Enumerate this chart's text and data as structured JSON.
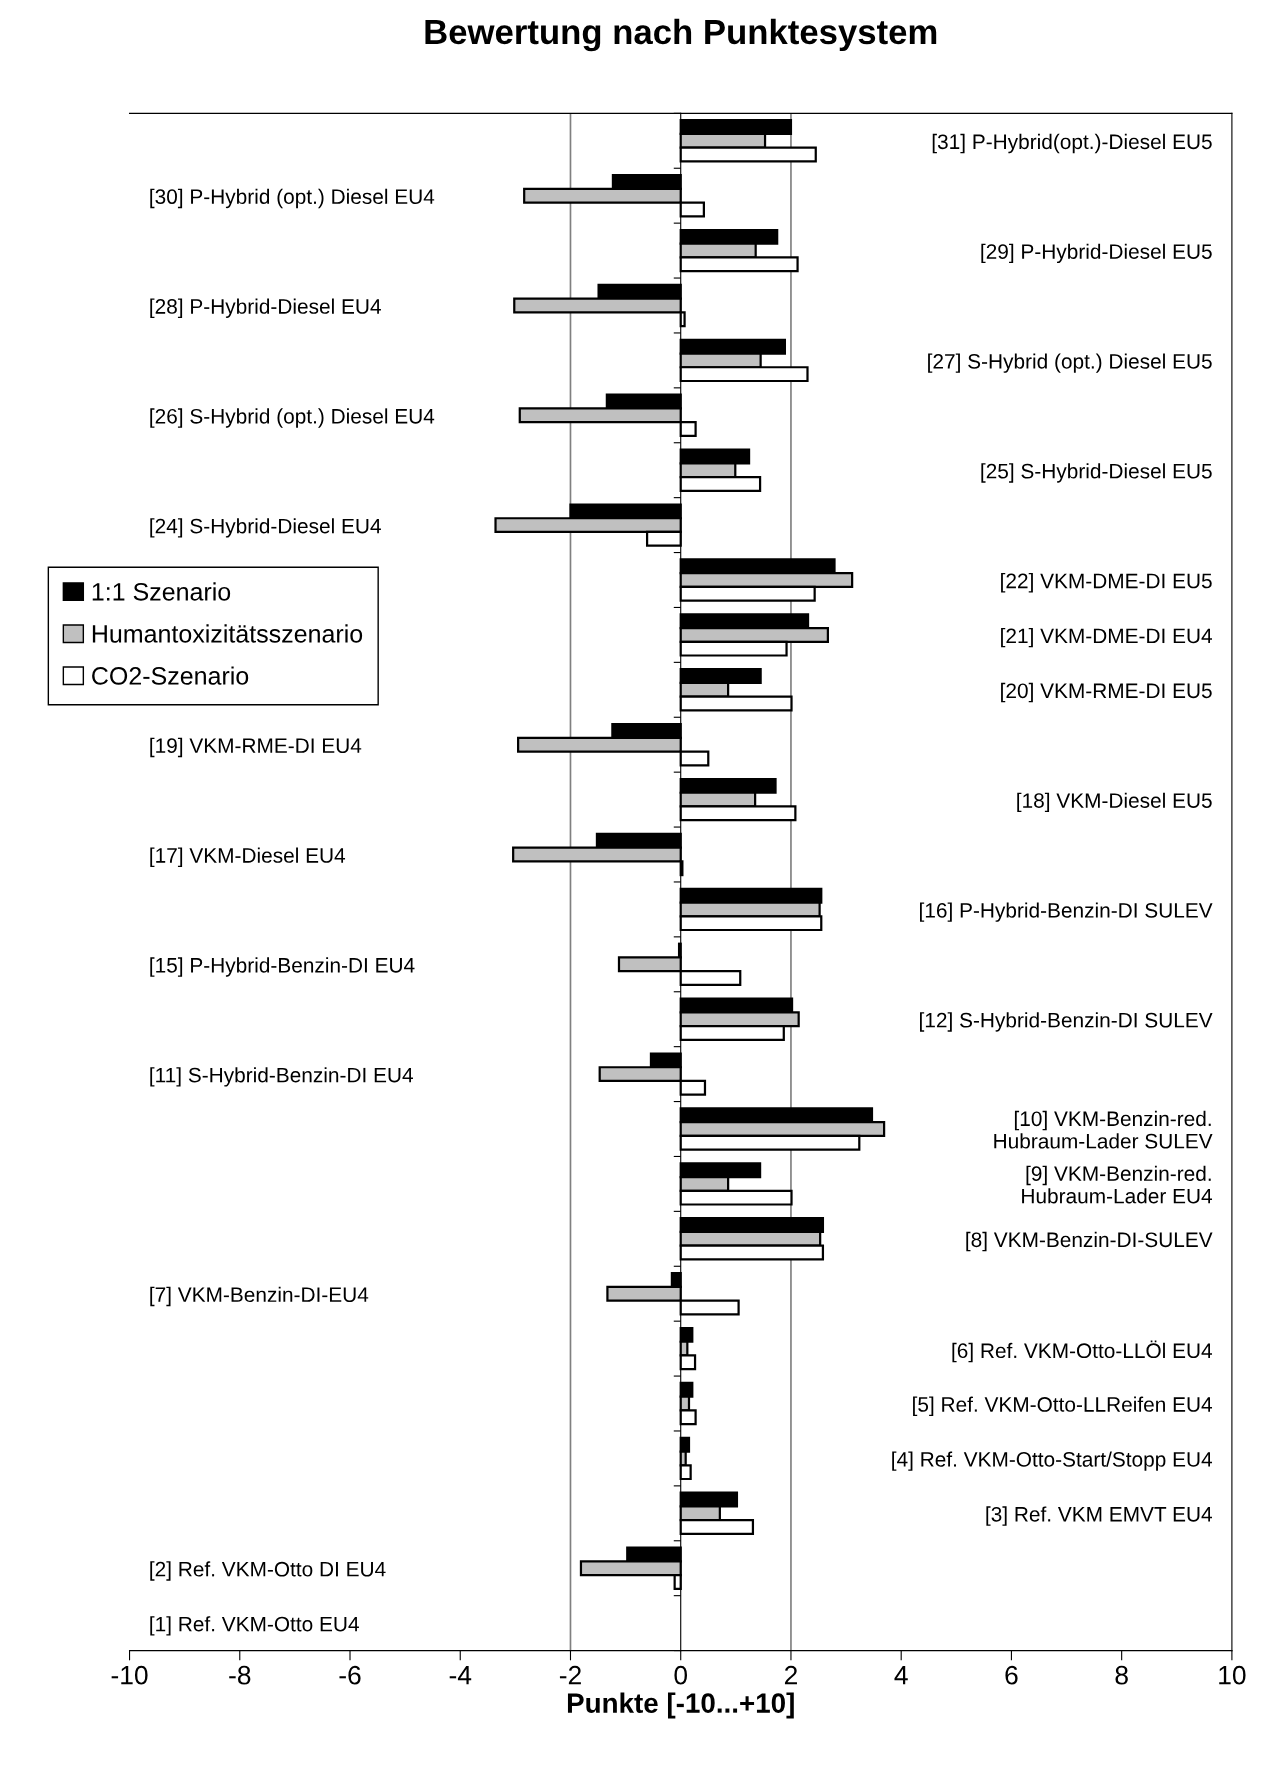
{
  "chart_data": {
    "type": "bar",
    "orientation": "horizontal",
    "title": "Bewertung nach Punktesystem",
    "xlabel": "Punkte [-10...+10]",
    "categories": [
      "[31] P-Hybrid(opt.)-Diesel EU5",
      "[30] P-Hybrid (opt.) Diesel EU4",
      "[29] P-Hybrid-Diesel EU5",
      "[28] P-Hybrid-Diesel EU4",
      "[27] S-Hybrid (opt.) Diesel EU5",
      "[26] S-Hybrid (opt.) Diesel EU4",
      "[25] S-Hybrid-Diesel EU5",
      "[24] S-Hybrid-Diesel EU4",
      "[22] VKM-DME-DI EU5",
      "[21] VKM-DME-DI EU4",
      "[20] VKM-RME-DI EU5",
      "[19] VKM-RME-DI EU4",
      "[18] VKM-Diesel EU5",
      "[17] VKM-Diesel EU4",
      "[16] P-Hybrid-Benzin-DI SULEV",
      "[15] P-Hybrid-Benzin-DI EU4",
      "[12] S-Hybrid-Benzin-DI SULEV",
      "[11] S-Hybrid-Benzin-DI EU4",
      "[10] VKM-Benzin-red.\nHubraum-Lader SULEV",
      "[9] VKM-Benzin-red.\nHubraum-Lader EU4",
      "[8] VKM-Benzin-DI-SULEV",
      "[7] VKM-Benzin-DI-EU4",
      "[6] Ref. VKM-Otto-LLÖl EU4",
      "[5] Ref. VKM-Otto-LLReifen EU4",
      "[4] Ref. VKM-Otto-Start/Stopp EU4",
      "[3] Ref. VKM EMVT EU4",
      "[2] Ref. VKM-Otto DI EU4",
      "[1] Ref. VKM-Otto EU4"
    ],
    "series": [
      {
        "name": "1:1 Szenario",
        "color": "#000000",
        "values": [
          2.0,
          -1.23,
          1.75,
          -1.49,
          1.89,
          -1.34,
          1.24,
          -2.0,
          2.79,
          2.31,
          1.45,
          -1.24,
          1.72,
          -1.52,
          2.55,
          -0.03,
          2.02,
          -0.54,
          3.47,
          1.44,
          2.58,
          -0.16,
          0.21,
          0.21,
          0.15,
          1.02,
          -0.97,
          null
        ]
      },
      {
        "name": "Humantoxizitätsszenario",
        "color": "#c0c0c0",
        "values": [
          1.53,
          -2.84,
          1.36,
          -3.02,
          1.45,
          -2.92,
          0.99,
          -3.36,
          3.11,
          2.67,
          0.86,
          -2.95,
          1.35,
          -3.04,
          2.52,
          -1.12,
          2.14,
          -1.47,
          3.69,
          0.86,
          2.53,
          -1.33,
          0.12,
          0.15,
          0.09,
          0.71,
          -1.81,
          null
        ]
      },
      {
        "name": "CO2-Szenario",
        "color": "#ffffff",
        "values": [
          2.45,
          0.42,
          2.12,
          0.07,
          2.3,
          0.27,
          1.44,
          -0.61,
          2.43,
          1.92,
          2.01,
          0.5,
          2.08,
          0.03,
          2.55,
          1.08,
          1.87,
          0.44,
          3.24,
          2.01,
          2.58,
          1.05,
          0.26,
          0.27,
          0.18,
          1.31,
          -0.11,
          null
        ]
      }
    ],
    "xlim": [
      -10,
      10
    ],
    "xticks": [
      -10,
      -8,
      -6,
      -4,
      -2,
      0,
      2,
      4,
      6,
      8,
      10
    ],
    "ref_lines": [
      {
        "axis": "x",
        "value": -2,
        "color": "#808080"
      },
      {
        "axis": "x",
        "value": 2,
        "color": "#808080"
      }
    ],
    "grid": false,
    "legend": "left"
  }
}
